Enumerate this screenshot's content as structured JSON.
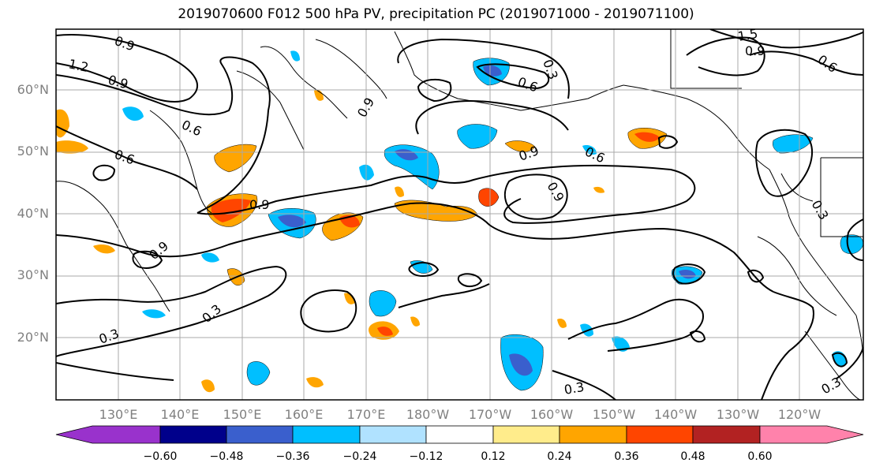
{
  "title": "2019070600 F012 500 hPa PV, precipitation PC (2019071000 - 2019071100)",
  "lat_labels": [
    "60°N",
    "50°N",
    "40°N",
    "30°N",
    "20°N"
  ],
  "lon_labels": [
    "130°E",
    "140°E",
    "150°E",
    "160°E",
    "170°E",
    "180°W",
    "170°W",
    "160°W",
    "150°W",
    "140°W",
    "130°W",
    "120°W"
  ],
  "colorbar": {
    "ticks": [
      "−0.60",
      "−0.48",
      "−0.36",
      "−0.24",
      "−0.12",
      "0.12",
      "0.24",
      "0.36",
      "0.48",
      "0.60"
    ],
    "colors": [
      "#9932cc",
      "#00008b",
      "#3a5fcd",
      "#00bfff",
      "#b0e2ff",
      "#ffffff",
      "#ffec8b",
      "#ffa500",
      "#ff4500",
      "#b22222",
      "#ff82ab"
    ]
  },
  "contour_labels": [
    "0.9",
    "1.2",
    "0.9",
    "0.6",
    "0.6",
    "0.9",
    "0.3",
    "0.3",
    "0.9",
    "0.6",
    "0.9",
    "0.9",
    "0.9",
    "0.6",
    "0.3",
    "0.3",
    "1.5",
    "0.9",
    "0.6",
    "0.3",
    "0.3"
  ]
}
